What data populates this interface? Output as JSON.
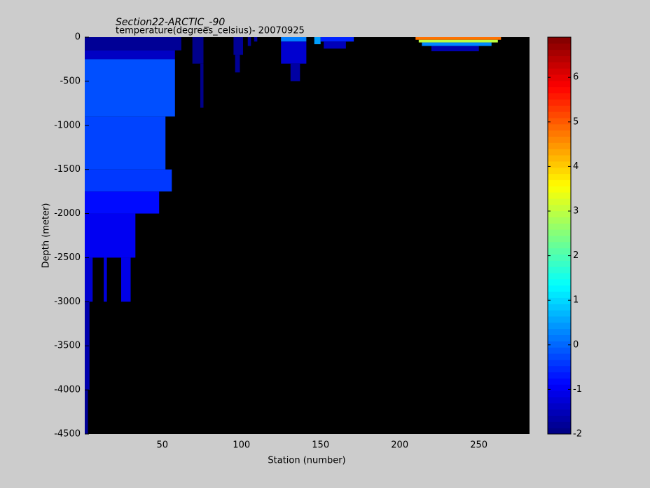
{
  "chart_data": {
    "type": "heatmap",
    "title": "Section22-ARCTIC_-90",
    "subtitle": "temperature(degrees_celsius)- 20070925",
    "x_label": "Station (number)",
    "y_label": "Depth (meter)",
    "xlim": [
      1,
      282
    ],
    "xticks": [
      50,
      100,
      150,
      200,
      250
    ],
    "ylim": [
      -4500,
      0
    ],
    "yticks": [
      0,
      -500,
      -1000,
      -1500,
      -2000,
      -2500,
      -3000,
      -3500,
      -4000,
      -4500
    ],
    "colormap": "jet",
    "background": "#000000",
    "clim": [
      -2,
      6.9
    ],
    "cticks": [
      -2,
      -1,
      0,
      1,
      2,
      3,
      4,
      5,
      6
    ],
    "cells": [
      [
        1,
        62,
        0,
        -150,
        -1.8
      ],
      [
        1,
        58,
        -150,
        -250,
        -1.4
      ],
      [
        1,
        58,
        -250,
        -900,
        -0.2
      ],
      [
        1,
        52,
        -900,
        -1500,
        -0.3
      ],
      [
        1,
        56,
        -1500,
        -1750,
        -0.4
      ],
      [
        1,
        48,
        -1750,
        -2000,
        -0.8
      ],
      [
        1,
        33,
        -2000,
        -2500,
        -1.0
      ],
      [
        1,
        6,
        -2500,
        -3000,
        -1.3
      ],
      [
        1,
        4,
        -3000,
        -4000,
        -1.6
      ],
      [
        1,
        3,
        -4000,
        -4500,
        -1.8
      ],
      [
        24,
        30,
        -2500,
        -3000,
        -1.1
      ],
      [
        13,
        15,
        -2500,
        -3000,
        -1.2
      ],
      [
        69,
        76,
        0,
        -300,
        -1.9
      ],
      [
        74,
        76,
        -300,
        -800,
        -1.9
      ],
      [
        95,
        101,
        0,
        -200,
        -1.8
      ],
      [
        96,
        99,
        -200,
        -400,
        -1.8
      ],
      [
        104,
        106,
        0,
        -100,
        -1.8
      ],
      [
        108,
        110,
        0,
        -50,
        -1.7
      ],
      [
        125,
        141,
        0,
        -50,
        0.2
      ],
      [
        125,
        141,
        -50,
        -300,
        -1.3
      ],
      [
        131,
        137,
        -300,
        -500,
        -1.7
      ],
      [
        146,
        150,
        0,
        -80,
        0.5
      ],
      [
        150,
        171,
        0,
        -50,
        -0.6
      ],
      [
        152,
        166,
        -50,
        -130,
        -1.5
      ],
      [
        210,
        264,
        0,
        -30,
        4.8
      ],
      [
        212,
        262,
        -30,
        -60,
        3.0
      ],
      [
        214,
        258,
        -60,
        -100,
        0.3
      ],
      [
        220,
        250,
        -100,
        -160,
        -1.6
      ]
    ]
  }
}
